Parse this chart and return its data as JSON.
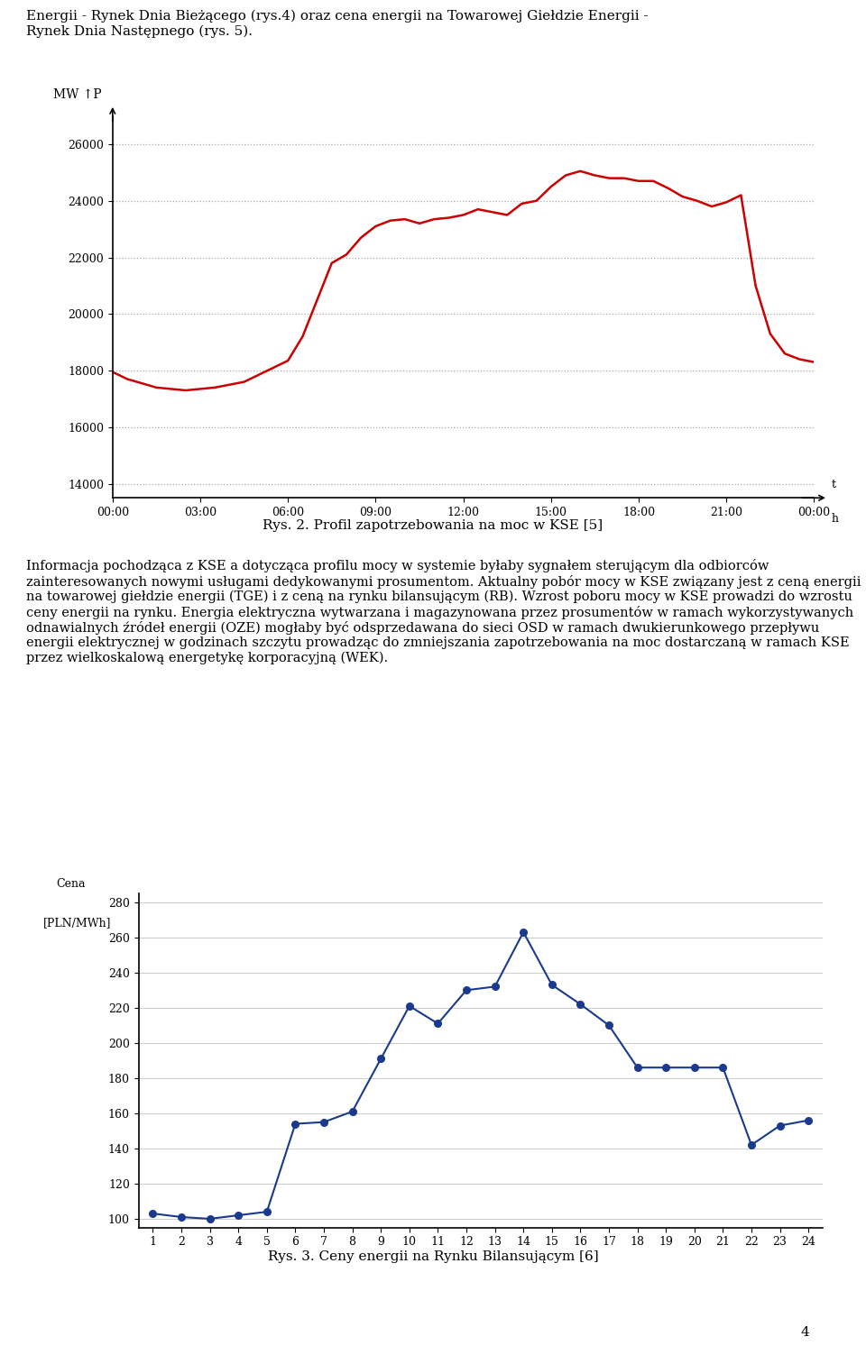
{
  "page_top_text": "Energii - Rynek Dnia Bieżącego (rys.4) oraz cena energii na Towarowej Giełdzie Energii -\nRynek Dnia Następnego (rys. 5).",
  "chart1_title": "Rys. 2. Profil zapotrzebowania na moc w KSE [5]",
  "chart1_yticks": [
    14000,
    16000,
    18000,
    20000,
    22000,
    24000,
    26000
  ],
  "chart1_xticks": [
    "00:00",
    "03:00",
    "06:00",
    "09:00",
    "12:00",
    "15:00",
    "18:00",
    "21:00",
    "00:00"
  ],
  "chart1_ylim": [
    13500,
    27000
  ],
  "chart1_color": "#cc0000",
  "chart1_x": [
    0,
    0.5,
    1,
    1.5,
    2,
    2.5,
    3,
    3.5,
    4,
    4.5,
    5,
    5.5,
    6,
    6.5,
    7,
    7.5,
    8,
    8.5,
    9,
    9.5,
    10,
    10.5,
    11,
    11.5,
    12,
    12.5,
    13,
    13.5,
    14,
    14.5,
    15,
    15.5,
    16,
    16.5,
    17,
    17.5,
    18,
    18.5,
    19,
    19.5,
    20,
    20.5,
    21,
    21.5,
    22,
    22.5,
    23,
    23.5,
    24
  ],
  "chart1_y": [
    17950,
    17700,
    17550,
    17400,
    17350,
    17300,
    17350,
    17400,
    17500,
    17600,
    17850,
    18100,
    18350,
    19200,
    20500,
    21800,
    22100,
    22700,
    23100,
    23300,
    23350,
    23200,
    23350,
    23400,
    23500,
    23700,
    23600,
    23500,
    23900,
    24000,
    24500,
    24900,
    25050,
    24900,
    24800,
    24800,
    24700,
    24700,
    24450,
    24150,
    24000,
    23800,
    23950,
    24200,
    21000,
    19300,
    18600,
    18400,
    18300
  ],
  "middle_text": "Informacja pochodząca z KSE a dotycząca profilu mocy w systemie byłaby sygnałem sterującym dla odbiorców zainteresowanych nowymi usługami dedykowanymi prosumentom. Aktualny pobór mocy w KSE związany jest z ceną energii na towarowej giełdzie energii (TGE) i z ceną na rynku bilansującym (RB). Wzrost poboru mocy w KSE prowadzi do wzrostu ceny energii na rynku. Energia elektryczna wytwarzana i magazynowana przez prosumentów w ramach wykorzystywanych odnawialnych źródeł energii (OZE) mogłaby być odsprzedawana do sieci OSD w ramach dwukierunkowego przepływu energii elektrycznej w godzinach szczytu prowadząc do zmniejszania zapotrzebowania na moc dostarczaną w ramach KSE przez wielkoskalową energetykę korporacyjną (WEK).",
  "chart2_title": "Rys. 3. Ceny energii na Rynku Bilansującym [6]",
  "chart2_ylabel_line1": "Cena",
  "chart2_ylabel_line2": "[PLN/MWh]",
  "chart2_yticks": [
    100,
    120,
    140,
    160,
    180,
    200,
    220,
    240,
    260,
    280
  ],
  "chart2_xticks": [
    1,
    2,
    3,
    4,
    5,
    6,
    7,
    8,
    9,
    10,
    11,
    12,
    13,
    14,
    15,
    16,
    17,
    18,
    19,
    20,
    21,
    22,
    23,
    24
  ],
  "chart2_ylim": [
    95,
    285
  ],
  "chart2_xlim": [
    0.5,
    24.5
  ],
  "chart2_color": "#1a3a8f",
  "chart2_x": [
    1,
    2,
    3,
    4,
    5,
    6,
    7,
    8,
    9,
    10,
    11,
    12,
    13,
    14,
    15,
    16,
    17,
    18,
    19,
    20,
    21,
    22,
    23,
    24
  ],
  "chart2_y": [
    103,
    101,
    100,
    102,
    104,
    154,
    155,
    161,
    191,
    221,
    211,
    230,
    232,
    263,
    233,
    222,
    210,
    186,
    186,
    186,
    186,
    142,
    153,
    156
  ],
  "bottom_page_num": "4",
  "bg_color": "#ffffff",
  "text_color": "#000000",
  "grid_color": "#aaaaaa",
  "grid_color2": "#cccccc"
}
